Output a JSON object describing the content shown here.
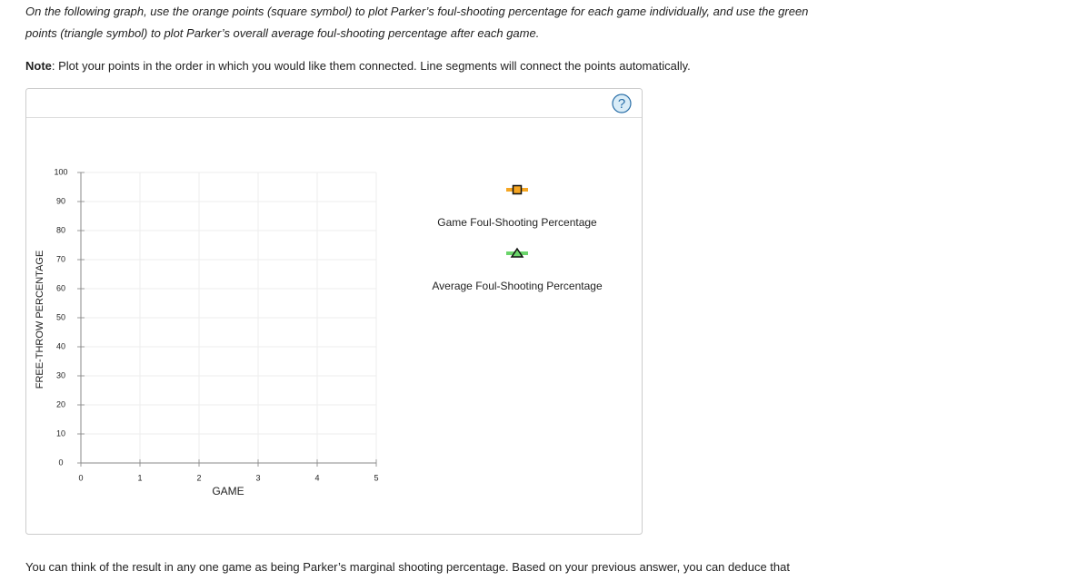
{
  "instructions": [
    "On the following graph, use the orange points (square symbol) to plot Parker’s foul-shooting percentage for each game individually, and use the green",
    "points (triangle symbol) to plot Parker’s overall average foul-shooting percentage after each game."
  ],
  "note": {
    "label": "Note",
    "text": ": Plot your points in the order in which you would like them connected. Line segments will connect the points automatically."
  },
  "help_button": "?",
  "chart_data": {
    "type": "line",
    "xlabel": "GAME",
    "ylabel": "FREE-THROW PERCENTAGE",
    "xlim": [
      0,
      5
    ],
    "xticks": [
      0,
      1,
      2,
      3,
      4,
      5
    ],
    "ylim": [
      0,
      100
    ],
    "yticks": [
      0,
      10,
      20,
      30,
      40,
      50,
      60,
      70,
      80,
      90,
      100
    ],
    "grid": true,
    "legend": "right",
    "x": [],
    "series": [
      {
        "name": "Game Foul-Shooting Percentage",
        "color": "#f5a623",
        "marker": "square",
        "values": []
      },
      {
        "name": "Average Foul-Shooting Percentage",
        "color": "#6ad46a",
        "marker": "triangle",
        "values": []
      }
    ]
  },
  "footer": "You can think of the result in any one game as being Parker’s marginal shooting percentage. Based on your previous answer, you can deduce that"
}
